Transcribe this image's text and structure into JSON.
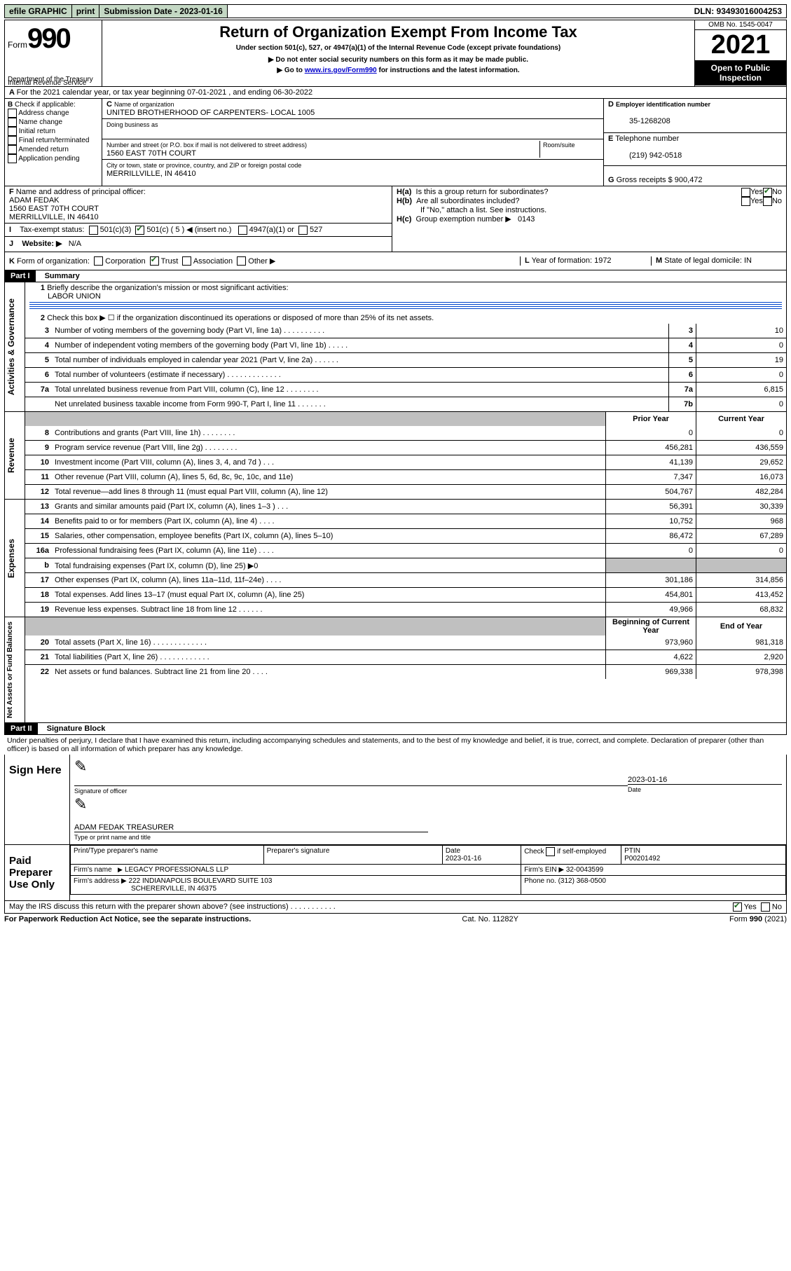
{
  "top": {
    "efile": "efile GRAPHIC",
    "print": "print",
    "sub_label": "Submission Date - 2023-01-16",
    "dln": "DLN: 93493016004253"
  },
  "header": {
    "form_word": "Form",
    "form_no": "990",
    "title": "Return of Organization Exempt From Income Tax",
    "sub1": "Under section 501(c), 527, or 4947(a)(1) of the Internal Revenue Code (except private foundations)",
    "sub2": "▶ Do not enter social security numbers on this form as it may be made public.",
    "sub3_pre": "▶ Go to ",
    "sub3_link": "www.irs.gov/Form990",
    "sub3_post": " for instructions and the latest information.",
    "dept": "Department of the Treasury",
    "irs": "Internal Revenue Service",
    "omb": "OMB No. 1545-0047",
    "year": "2021",
    "open": "Open to Public Inspection"
  },
  "lineA": "For the 2021 calendar year, or tax year beginning 07-01-2021   , and ending 06-30-2022",
  "boxB": {
    "label": "Check if applicable:",
    "opts": [
      "Address change",
      "Name change",
      "Initial return",
      "Final return/terminated",
      "Amended return",
      "Application pending"
    ]
  },
  "boxC": {
    "name_lbl": "Name of organization",
    "name": "UNITED BROTHERHOOD OF CARPENTERS- LOCAL 1005",
    "dba_lbl": "Doing business as",
    "street_lbl": "Number and street (or P.O. box if mail is not delivered to street address)",
    "room_lbl": "Room/suite",
    "street": "1560 EAST 70TH COURT",
    "city_lbl": "City or town, state or province, country, and ZIP or foreign postal code",
    "city": "MERRILLVILLE, IN  46410"
  },
  "boxD": {
    "lbl": "Employer identification number",
    "val": "35-1268208"
  },
  "boxE": {
    "lbl": "Telephone number",
    "val": "(219) 942-0518"
  },
  "boxG": {
    "lbl": "Gross receipts $",
    "val": "900,472"
  },
  "boxF": {
    "lbl": "Name and address of principal officer:",
    "line1": "ADAM FEDAK",
    "line2": "1560 EAST 70TH COURT",
    "line3": "MERRILLVILLE, IN  46410"
  },
  "boxH": {
    "a": "Is this a group return for subordinates?",
    "b": "Are all subordinates included?",
    "b2": "If \"No,\" attach a list. See instructions.",
    "c_lbl": "Group exemption number ▶",
    "c_val": "0143"
  },
  "lineI": {
    "lbl": "Tax-exempt status:",
    "c3": "501(c)(3)",
    "c_a": "501(c) (",
    "c_b": "5",
    "c_c": ") ◀ (insert no.)",
    "a1": "4947(a)(1) or",
    "s527": "527"
  },
  "lineJ": {
    "lbl": "Website: ▶",
    "val": "N/A"
  },
  "lineK": {
    "lbl": "Form of organization:",
    "opts": [
      "Corporation",
      "Trust",
      "Association",
      "Other ▶"
    ]
  },
  "lineL": {
    "lbl": "Year of formation:",
    "val": "1972"
  },
  "lineM": {
    "lbl": "State of legal domicile:",
    "val": "IN"
  },
  "part1": {
    "title": "Summary",
    "q1": "Briefly describe the organization's mission or most significant activities:",
    "q1v": "LABOR UNION",
    "q2": "Check this box ▶ ☐  if the organization discontinued its operations or disposed of more than 25% of its net assets.",
    "rows_top": [
      {
        "n": "3",
        "t": "Number of voting members of the governing body (Part VI, line 1a)   .    .    .    .    .    .    .    .    .    .",
        "box": "3",
        "v": "10"
      },
      {
        "n": "4",
        "t": "Number of independent voting members of the governing body (Part VI, line 1b)    .    .    .    .    .",
        "box": "4",
        "v": "0"
      },
      {
        "n": "5",
        "t": "Total number of individuals employed in calendar year 2021 (Part V, line 2a)    .    .    .    .    .    .",
        "box": "5",
        "v": "19"
      },
      {
        "n": "6",
        "t": "Total number of volunteers (estimate if necessary)   .    .    .    .    .    .    .    .    .    .    .    .    .",
        "box": "6",
        "v": "0"
      },
      {
        "n": "7a",
        "t": "Total unrelated business revenue from Part VIII, column (C), line 12   .    .    .    .    .    .    .    .",
        "box": "7a",
        "v": "6,815"
      },
      {
        "n": "",
        "t": "Net unrelated business taxable income from Form 990-T, Part I, line 11   .    .    .    .    .    .    .",
        "box": "7b",
        "v": "0"
      }
    ],
    "h_prior": "Prior Year",
    "h_curr": "Current Year",
    "rows_rev": [
      {
        "n": "8",
        "t": "Contributions and grants (Part VIII, line 1h)   .    .    .    .    .    .    .    .",
        "p": "0",
        "c": "0"
      },
      {
        "n": "9",
        "t": "Program service revenue (Part VIII, line 2g)   .    .    .    .    .    .    .    .",
        "p": "456,281",
        "c": "436,559"
      },
      {
        "n": "10",
        "t": "Investment income (Part VIII, column (A), lines 3, 4, and 7d )   .    .    .",
        "p": "41,139",
        "c": "29,652"
      },
      {
        "n": "11",
        "t": "Other revenue (Part VIII, column (A), lines 5, 6d, 8c, 9c, 10c, and 11e)",
        "p": "7,347",
        "c": "16,073"
      },
      {
        "n": "12",
        "t": "Total revenue—add lines 8 through 11 (must equal Part VIII, column (A), line 12)",
        "p": "504,767",
        "c": "482,284"
      }
    ],
    "rows_exp": [
      {
        "n": "13",
        "t": "Grants and similar amounts paid (Part IX, column (A), lines 1–3 )   .    .    .",
        "p": "56,391",
        "c": "30,339"
      },
      {
        "n": "14",
        "t": "Benefits paid to or for members (Part IX, column (A), line 4)   .    .    .    .",
        "p": "10,752",
        "c": "968"
      },
      {
        "n": "15",
        "t": "Salaries, other compensation, employee benefits (Part IX, column (A), lines 5–10)",
        "p": "86,472",
        "c": "67,289"
      },
      {
        "n": "16a",
        "t": "Professional fundraising fees (Part IX, column (A), line 11e)   .    .    .    .",
        "p": "0",
        "c": "0"
      },
      {
        "n": "b",
        "t": "Total fundraising expenses (Part IX, column (D), line 25) ▶0",
        "p": "",
        "c": "",
        "shade": true
      },
      {
        "n": "17",
        "t": "Other expenses (Part IX, column (A), lines 11a–11d, 11f–24e)   .    .    .    .",
        "p": "301,186",
        "c": "314,856"
      },
      {
        "n": "18",
        "t": "Total expenses. Add lines 13–17 (must equal Part IX, column (A), line 25)",
        "p": "454,801",
        "c": "413,452"
      },
      {
        "n": "19",
        "t": "Revenue less expenses. Subtract line 18 from line 12   .    .    .    .    .    .",
        "p": "49,966",
        "c": "68,832"
      }
    ],
    "h_beg": "Beginning of Current Year",
    "h_end": "End of Year",
    "rows_net": [
      {
        "n": "20",
        "t": "Total assets (Part X, line 16)   .    .    .    .    .    .    .    .    .    .    .    .    .",
        "p": "973,960",
        "c": "981,318"
      },
      {
        "n": "21",
        "t": "Total liabilities (Part X, line 26)   .    .    .    .    .    .    .    .    .    .    .    .",
        "p": "4,622",
        "c": "2,920"
      },
      {
        "n": "22",
        "t": "Net assets or fund balances. Subtract line 21 from line 20   .    .    .    .",
        "p": "969,338",
        "c": "978,398"
      }
    ]
  },
  "part2": {
    "title": "Signature Block",
    "decl": "Under penalties of perjury, I declare that I have examined this return, including accompanying schedules and statements, and to the best of my knowledge and belief, it is true, correct, and complete. Declaration of preparer (other than officer) is based on all information of which preparer has any knowledge."
  },
  "sign": {
    "label": "Sign Here",
    "sig_lbl": "Signature of officer",
    "date_v": "2023-01-16",
    "date_lbl": "Date",
    "name": "ADAM FEDAK TREASURER",
    "name_lbl": "Type or print name and title"
  },
  "paid": {
    "label": "Paid Preparer Use Only",
    "h1": "Print/Type preparer's name",
    "h2": "Preparer's signature",
    "h3": "Date",
    "h3v": "2023-01-16",
    "h4a": "Check",
    "h4b": "if self-employed",
    "h5": "PTIN",
    "h5v": "P00201492",
    "firm_lbl": "Firm's name",
    "firm_v": "LEGACY PROFESSIONALS LLP",
    "ein_lbl": "Firm's EIN ▶",
    "ein_v": "32-0043599",
    "addr_lbl": "Firm's address ▶",
    "addr_v": "222 INDIANAPOLIS BOULEVARD SUITE 103",
    "addr_v2": "SCHERERVILLE, IN  46375",
    "phone_lbl": "Phone no.",
    "phone_v": "(312) 368-0500"
  },
  "discussQ": "May the IRS discuss this return with the preparer shown above? (see instructions)   .    .    .    .    .    .    .    .    .    .    .",
  "footer": {
    "left": "For Paperwork Reduction Act Notice, see the separate instructions.",
    "mid": "Cat. No. 11282Y",
    "right": "Form 990 (2021)"
  },
  "side": {
    "gov": "Activities & Governance",
    "rev": "Revenue",
    "exp": "Expenses",
    "net": "Net Assets or Fund Balances"
  }
}
